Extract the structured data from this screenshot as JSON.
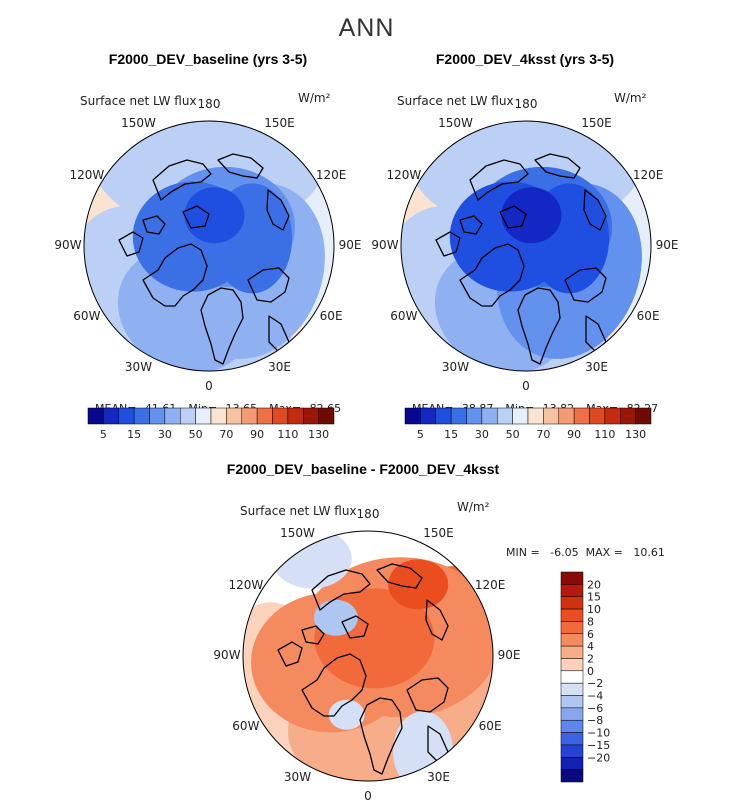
{
  "figure": {
    "title": "ANN"
  },
  "chart_data": [
    {
      "type": "heatmap",
      "projection": "north polar stereographic",
      "title": "F2000_DEV_baseline (yrs 3-5)",
      "variable": "Surface net LW flux",
      "units": "W/m²",
      "lon_labels": [
        "180",
        "150E",
        "120E",
        "90E",
        "60E",
        "30E",
        "0",
        "30W",
        "60W",
        "90W",
        "120W",
        "150W"
      ],
      "stats": {
        "mean_label": "MEAN=",
        "mean": "41.61",
        "min_label": "Min=",
        "min": "13.65",
        "max_label": "Max=",
        "max": "82.65"
      },
      "colorbar": {
        "orientation": "horizontal",
        "colors": [
          "#08088c",
          "#1227c4",
          "#1f4fe0",
          "#3a6fe6",
          "#6391ee",
          "#8fb1f2",
          "#bcd0f5",
          "#e6eefa",
          "#fbe3d2",
          "#f7c2a2",
          "#f39a72",
          "#ee7044",
          "#e04a22",
          "#c42c10",
          "#9a1708",
          "#700b04"
        ],
        "tick_labels": [
          "5",
          "15",
          "30",
          "50",
          "70",
          "90",
          "110",
          "130"
        ]
      }
    },
    {
      "type": "heatmap",
      "projection": "north polar stereographic",
      "title": "F2000_DEV_4ksst (yrs 3-5)",
      "variable": "Surface net LW flux",
      "units": "W/m²",
      "lon_labels": [
        "180",
        "150E",
        "120E",
        "90E",
        "60E",
        "30E",
        "0",
        "30W",
        "60W",
        "90W",
        "120W",
        "150W"
      ],
      "stats": {
        "mean_label": "MEAN=",
        "mean": "38.87",
        "min_label": "Min=",
        "min": "13.82",
        "max_label": "Max=",
        "max": "82.27"
      },
      "colorbar": {
        "orientation": "horizontal",
        "colors": [
          "#08088c",
          "#1227c4",
          "#1f4fe0",
          "#3a6fe6",
          "#6391ee",
          "#8fb1f2",
          "#bcd0f5",
          "#e6eefa",
          "#fbe3d2",
          "#f7c2a2",
          "#f39a72",
          "#ee7044",
          "#e04a22",
          "#c42c10",
          "#9a1708",
          "#700b04"
        ],
        "tick_labels": [
          "5",
          "15",
          "30",
          "50",
          "70",
          "90",
          "110",
          "130"
        ]
      }
    },
    {
      "type": "heatmap",
      "projection": "north polar stereographic",
      "title": "F2000_DEV_baseline - F2000_DEV_4ksst",
      "variable": "Surface net LW flux",
      "units": "W/m²",
      "lon_labels": [
        "180",
        "150E",
        "120E",
        "90E",
        "60E",
        "30E",
        "0",
        "30W",
        "60W",
        "90W",
        "120W",
        "150W"
      ],
      "stats_text": "MIN =   -6.05  MAX =   10.61",
      "colorbar": {
        "orientation": "vertical",
        "colors": [
          "#8b0a05",
          "#b31a0a",
          "#d2300e",
          "#ea4d1e",
          "#f36a3a",
          "#f58a5e",
          "#f8ad8a",
          "#fbd3bd",
          "#ffffff",
          "#d5e0f7",
          "#aec6f2",
          "#86a7ee",
          "#5f86ea",
          "#3c63e3",
          "#2342d6",
          "#1322b2",
          "#0a0a7c"
        ],
        "tick_labels": [
          "20",
          "15",
          "10",
          "8",
          "6",
          "4",
          "2",
          "0",
          "−2",
          "−4",
          "−6",
          "−8",
          "−10",
          "−15",
          "−20"
        ]
      }
    }
  ]
}
